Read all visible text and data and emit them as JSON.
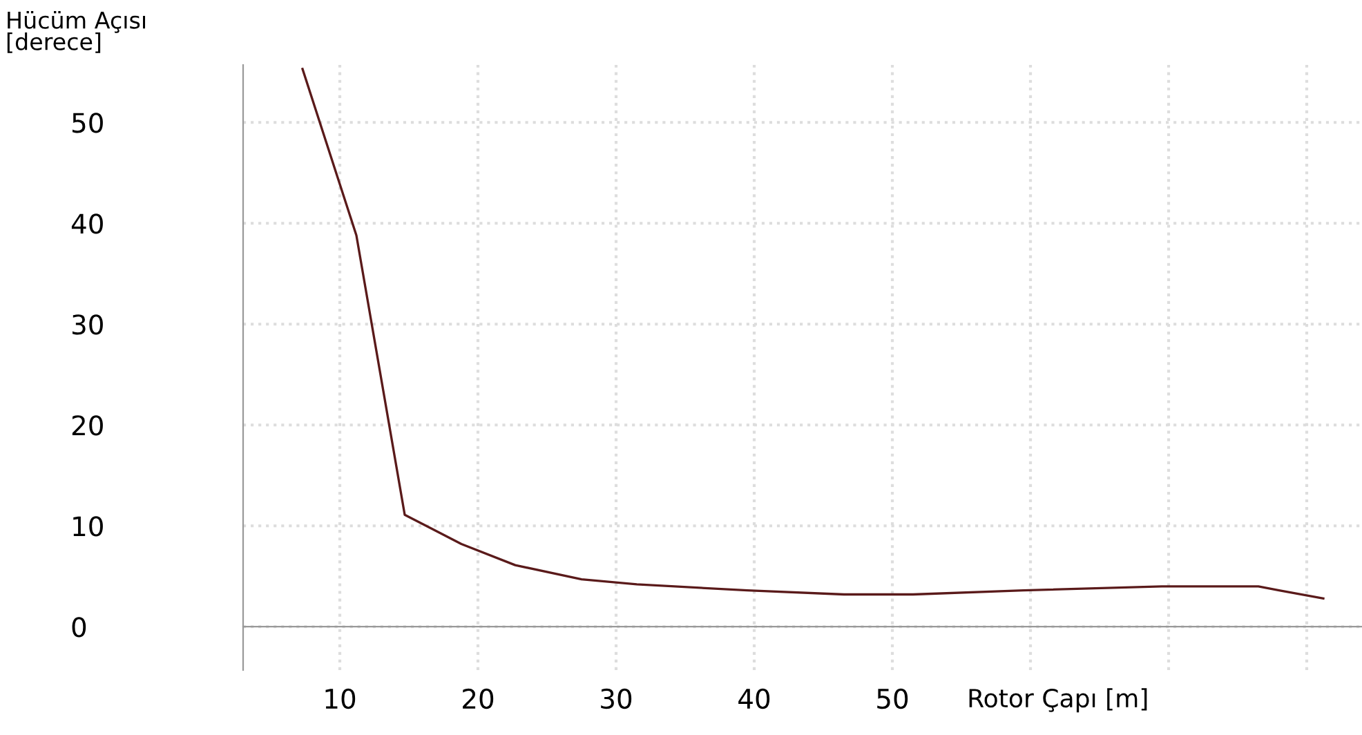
{
  "chart_data": {
    "type": "line",
    "xlabel": "Rotor Çapı [m]",
    "ylabel": "Hücüm Açısı\n[derece]",
    "x": [
      7.3,
      11.2,
      14.7,
      18.8,
      22.7,
      27.5,
      31.5,
      39.5,
      46.5,
      51.5,
      59.5,
      69.5,
      76.5,
      78,
      81.2
    ],
    "series": [
      {
        "color": "#5a1a1a",
        "values": [
          55.3,
          38.8,
          11.1,
          8.2,
          6.1,
          4.7,
          4.2,
          3.6,
          3.2,
          3.2,
          3.6,
          4.0,
          4.0,
          3.6,
          2.8
        ]
      }
    ],
    "xlim": [
      3,
      84
    ],
    "ylim": [
      -4.3,
      55.7
    ],
    "xticks": [
      10,
      20,
      30,
      40,
      50,
      {
        "value": 60,
        "label": null
      },
      {
        "value": 70,
        "label": null
      },
      {
        "value": 80,
        "label": null
      }
    ],
    "yticks": [
      0,
      10,
      20,
      30,
      40,
      50
    ],
    "grid": true,
    "marker": "none",
    "line_style": "solid"
  }
}
